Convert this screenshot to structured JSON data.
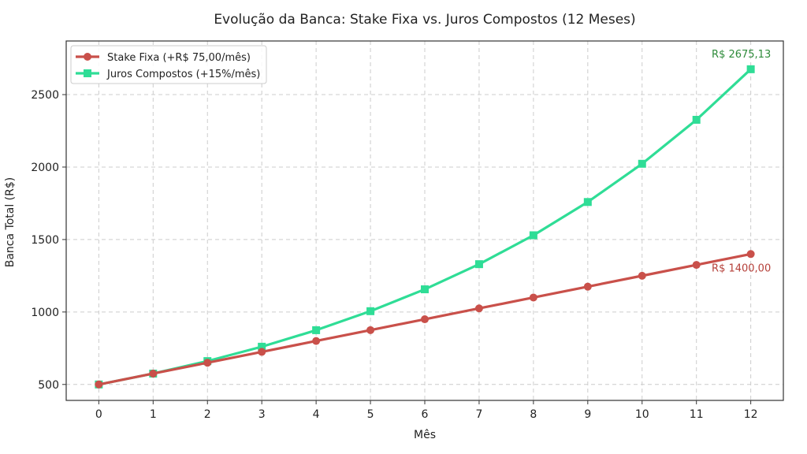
{
  "chart_data": {
    "type": "line",
    "title": "Evolução da Banca: Stake Fixa vs. Juros Compostos (12 Meses)",
    "xlabel": "Mês",
    "ylabel": "Banca Total (R$)",
    "x": [
      0,
      1,
      2,
      3,
      4,
      5,
      6,
      7,
      8,
      9,
      10,
      11,
      12
    ],
    "xlim": [
      -0.6,
      12.6
    ],
    "ylim": [
      390,
      2870
    ],
    "y_ticks": [
      500,
      1000,
      1500,
      2000,
      2500
    ],
    "grid": true,
    "legend_position": "top-left",
    "series": [
      {
        "name": "Stake Fixa (+R$ 75,00/mês)",
        "color": "#c9504a",
        "marker": "circle",
        "values": [
          500,
          575,
          650,
          725,
          800,
          875,
          950,
          1025,
          1100,
          1175,
          1250,
          1325,
          1400
        ]
      },
      {
        "name": "Juros Compostos (+15%/mês)",
        "color": "#2fdd96",
        "marker": "square",
        "values": [
          500,
          575,
          661.25,
          760.44,
          874.5,
          1005.68,
          1156.53,
          1330.01,
          1529.51,
          1758.94,
          2022.78,
          2326.2,
          2675.13
        ]
      }
    ],
    "annotations": [
      {
        "text": "R$ 2675,13",
        "series": 1,
        "x": 12,
        "color": "#2e8b3a"
      },
      {
        "text": "R$ 1400,00",
        "series": 0,
        "x": 12,
        "color": "#b5403a"
      }
    ]
  }
}
